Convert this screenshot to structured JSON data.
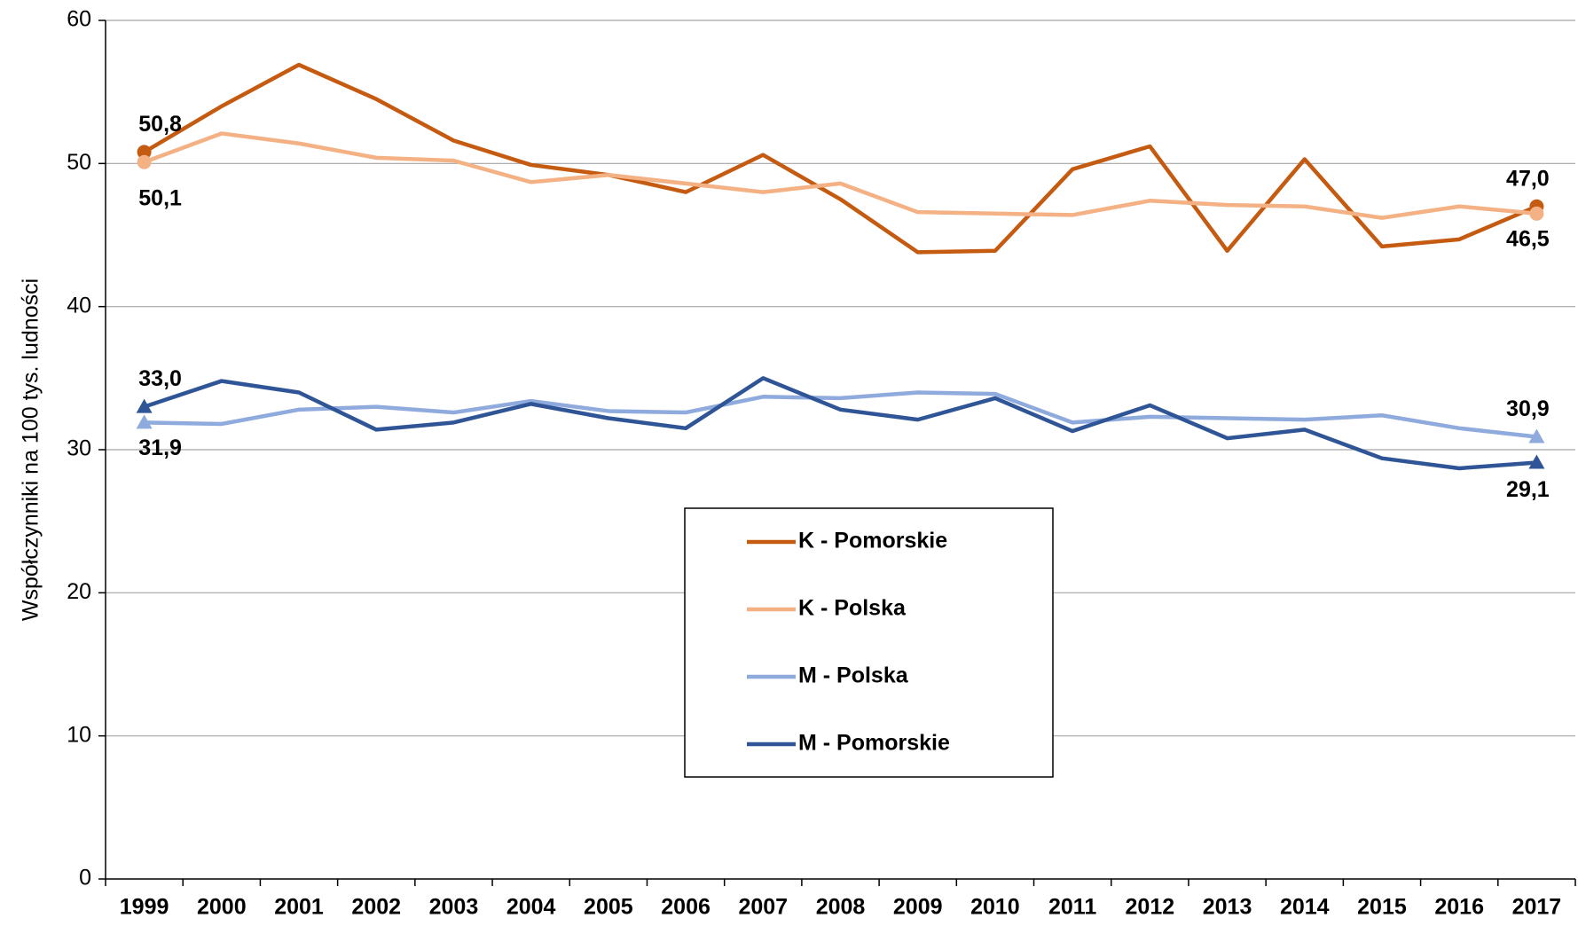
{
  "chart_data": {
    "type": "line",
    "y_label": "Współczynniki na 100 tys. ludności",
    "categories": [
      "1999",
      "2000",
      "2001",
      "2002",
      "2003",
      "2004",
      "2005",
      "2006",
      "2007",
      "2008",
      "2009",
      "2010",
      "2011",
      "2012",
      "2013",
      "2014",
      "2015",
      "2016",
      "2017"
    ],
    "series": [
      {
        "name": "K - Pomorskie",
        "color": "#c55a11",
        "marker": "circle",
        "values": [
          50.8,
          54.0,
          56.9,
          54.5,
          51.6,
          49.9,
          49.2,
          48.0,
          50.6,
          47.5,
          43.8,
          43.9,
          49.6,
          51.2,
          43.9,
          50.3,
          44.2,
          44.7,
          47.0
        ],
        "value_labels": [
          "50,8",
          null,
          null,
          null,
          null,
          null,
          null,
          null,
          null,
          null,
          null,
          null,
          null,
          null,
          null,
          null,
          null,
          null,
          "47,0"
        ]
      },
      {
        "name": "K - Polska",
        "color": "#f4b183",
        "marker": "circle",
        "values": [
          50.1,
          52.1,
          51.4,
          50.4,
          50.2,
          48.7,
          49.2,
          48.6,
          48.0,
          48.6,
          46.6,
          46.5,
          46.4,
          47.4,
          47.1,
          47.0,
          46.2,
          47.0,
          46.5
        ],
        "value_labels": [
          "50,1",
          null,
          null,
          null,
          null,
          null,
          null,
          null,
          null,
          null,
          null,
          null,
          null,
          null,
          null,
          null,
          null,
          null,
          "46,5"
        ]
      },
      {
        "name": "M - Polska",
        "color": "#8faadc",
        "marker": "triangle",
        "values": [
          31.9,
          31.8,
          32.8,
          33.0,
          32.6,
          33.4,
          32.7,
          32.6,
          33.7,
          33.6,
          34.0,
          33.9,
          31.9,
          32.3,
          32.2,
          32.1,
          32.4,
          31.5,
          30.9
        ],
        "value_labels": [
          "31,9",
          null,
          null,
          null,
          null,
          null,
          null,
          null,
          null,
          null,
          null,
          null,
          null,
          null,
          null,
          null,
          null,
          null,
          "30,9"
        ]
      },
      {
        "name": "M - Pomorskie",
        "color": "#2f5597",
        "marker": "triangle",
        "values": [
          33.0,
          34.8,
          34.0,
          31.4,
          31.9,
          33.2,
          32.2,
          31.5,
          35.0,
          32.8,
          32.1,
          33.6,
          31.3,
          33.1,
          30.8,
          31.4,
          29.4,
          28.7,
          29.1
        ],
        "value_labels": [
          "33,0",
          null,
          null,
          null,
          null,
          null,
          null,
          null,
          null,
          null,
          null,
          null,
          null,
          null,
          null,
          null,
          null,
          null,
          "29,1"
        ]
      }
    ],
    "ylim": [
      0,
      60
    ],
    "yticks": [
      0,
      10,
      20,
      30,
      40,
      50,
      60
    ],
    "grid": true,
    "legend": "center"
  }
}
